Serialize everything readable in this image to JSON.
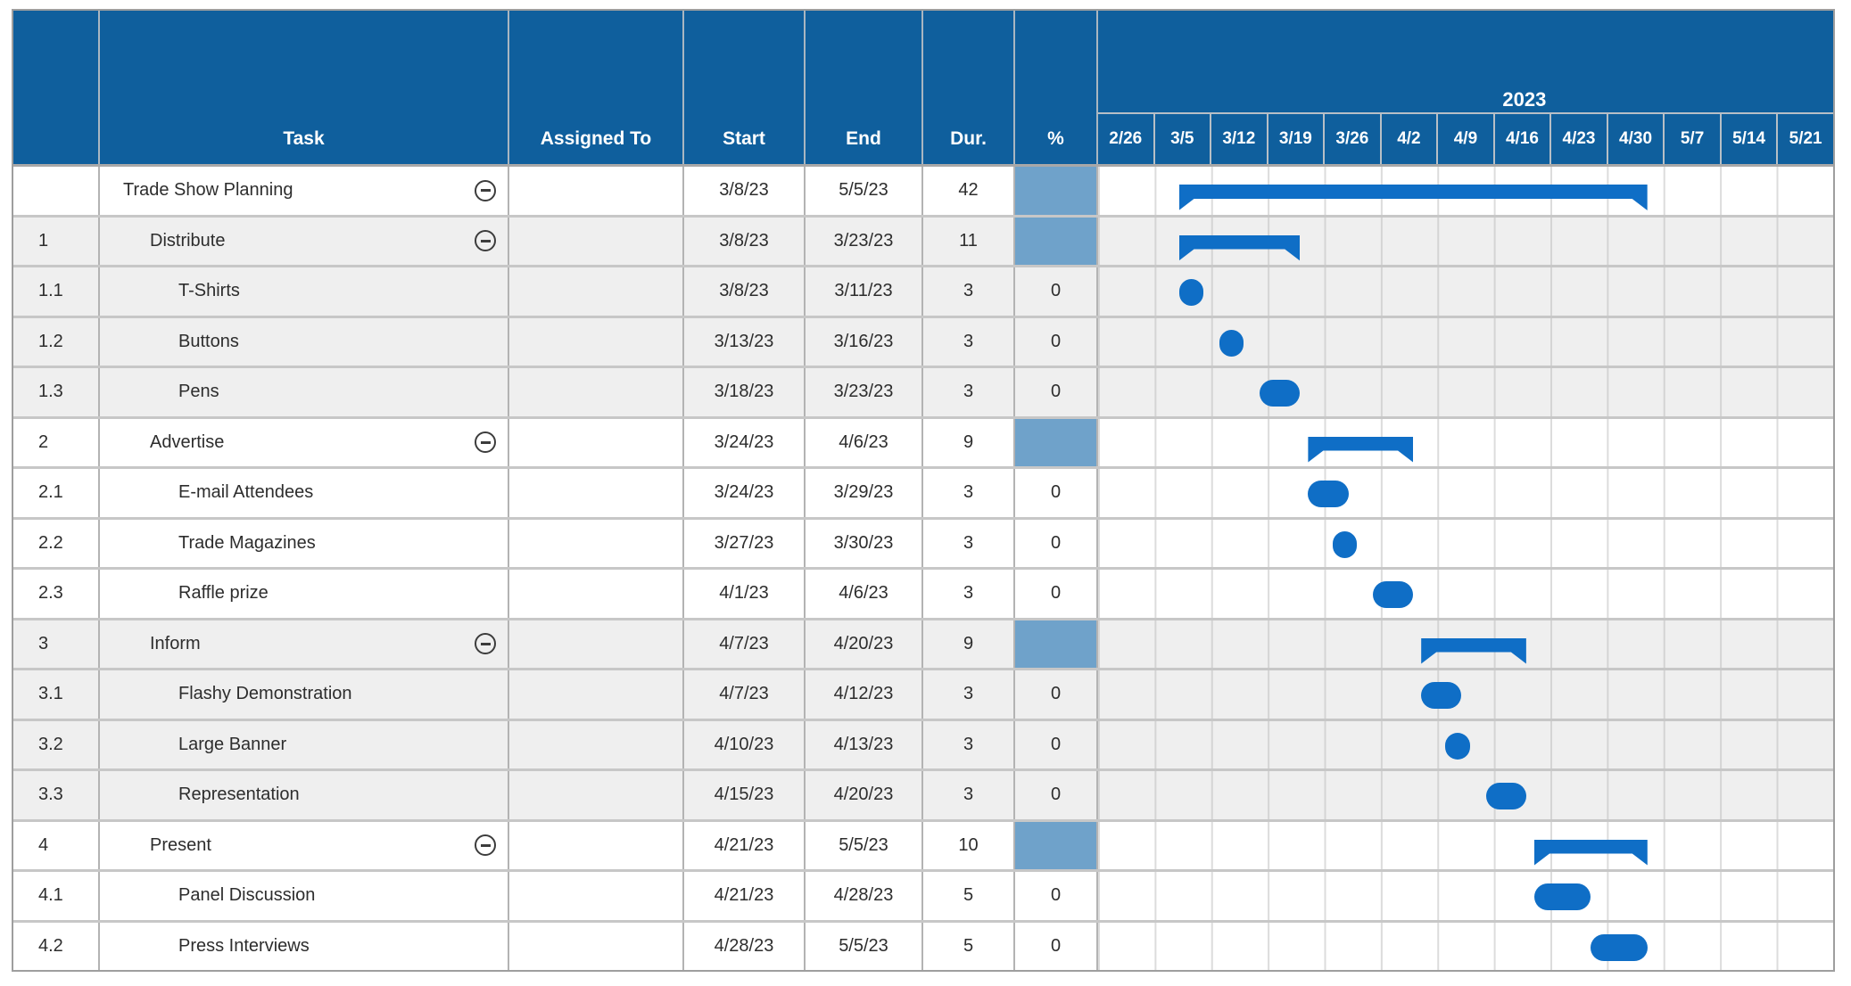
{
  "header": {
    "num_label": "",
    "task_label": "Task",
    "assigned_label": "Assigned To",
    "start_label": "Start",
    "end_label": "End",
    "duration_label": "Dur.",
    "percent_label": "%"
  },
  "colors": {
    "header_blue": "#0f5f9d",
    "bar_blue": "#0f6ec6",
    "summary_percent_fill": "#6fa2ca",
    "shaded_row": "#efefef"
  },
  "chart_data": {
    "type": "gantt",
    "year_label": "2023",
    "timeline_start": "2/26/23",
    "week_columns": [
      "2/26",
      "3/5",
      "3/12",
      "3/19",
      "3/26",
      "4/2",
      "4/9",
      "4/16",
      "4/23",
      "4/30",
      "5/7",
      "5/14",
      "5/21"
    ],
    "days_per_column": 7,
    "tasks": [
      {
        "id": "",
        "name": "Trade Show Planning",
        "assigned": "",
        "start": "3/8/23",
        "end": "5/5/23",
        "duration": "42",
        "percent": "",
        "summary": true
      },
      {
        "id": "1",
        "name": "Distribute",
        "assigned": "",
        "start": "3/8/23",
        "end": "3/23/23",
        "duration": "11",
        "percent": "",
        "summary": true
      },
      {
        "id": "1.1",
        "name": "T-Shirts",
        "assigned": "",
        "start": "3/8/23",
        "end": "3/11/23",
        "duration": "3",
        "percent": "0",
        "summary": false
      },
      {
        "id": "1.2",
        "name": "Buttons",
        "assigned": "",
        "start": "3/13/23",
        "end": "3/16/23",
        "duration": "3",
        "percent": "0",
        "summary": false
      },
      {
        "id": "1.3",
        "name": "Pens",
        "assigned": "",
        "start": "3/18/23",
        "end": "3/23/23",
        "duration": "3",
        "percent": "0",
        "summary": false
      },
      {
        "id": "2",
        "name": "Advertise",
        "assigned": "",
        "start": "3/24/23",
        "end": "4/6/23",
        "duration": "9",
        "percent": "",
        "summary": true
      },
      {
        "id": "2.1",
        "name": "E-mail Attendees",
        "assigned": "",
        "start": "3/24/23",
        "end": "3/29/23",
        "duration": "3",
        "percent": "0",
        "summary": false
      },
      {
        "id": "2.2",
        "name": "Trade Magazines",
        "assigned": "",
        "start": "3/27/23",
        "end": "3/30/23",
        "duration": "3",
        "percent": "0",
        "summary": false
      },
      {
        "id": "2.3",
        "name": "Raffle prize",
        "assigned": "",
        "start": "4/1/23",
        "end": "4/6/23",
        "duration": "3",
        "percent": "0",
        "summary": false
      },
      {
        "id": "3",
        "name": "Inform",
        "assigned": "",
        "start": "4/7/23",
        "end": "4/20/23",
        "duration": "9",
        "percent": "",
        "summary": true
      },
      {
        "id": "3.1",
        "name": "Flashy Demonstration",
        "assigned": "",
        "start": "4/7/23",
        "end": "4/12/23",
        "duration": "3",
        "percent": "0",
        "summary": false
      },
      {
        "id": "3.2",
        "name": "Large Banner",
        "assigned": "",
        "start": "4/10/23",
        "end": "4/13/23",
        "duration": "3",
        "percent": "0",
        "summary": false
      },
      {
        "id": "3.3",
        "name": "Representation",
        "assigned": "",
        "start": "4/15/23",
        "end": "4/20/23",
        "duration": "3",
        "percent": "0",
        "summary": false
      },
      {
        "id": "4",
        "name": "Present",
        "assigned": "",
        "start": "4/21/23",
        "end": "5/5/23",
        "duration": "10",
        "percent": "",
        "summary": true
      },
      {
        "id": "4.1",
        "name": "Panel Discussion",
        "assigned": "",
        "start": "4/21/23",
        "end": "4/28/23",
        "duration": "5",
        "percent": "0",
        "summary": false
      },
      {
        "id": "4.2",
        "name": "Press Interviews",
        "assigned": "",
        "start": "4/28/23",
        "end": "5/5/23",
        "duration": "5",
        "percent": "0",
        "summary": false
      }
    ]
  }
}
